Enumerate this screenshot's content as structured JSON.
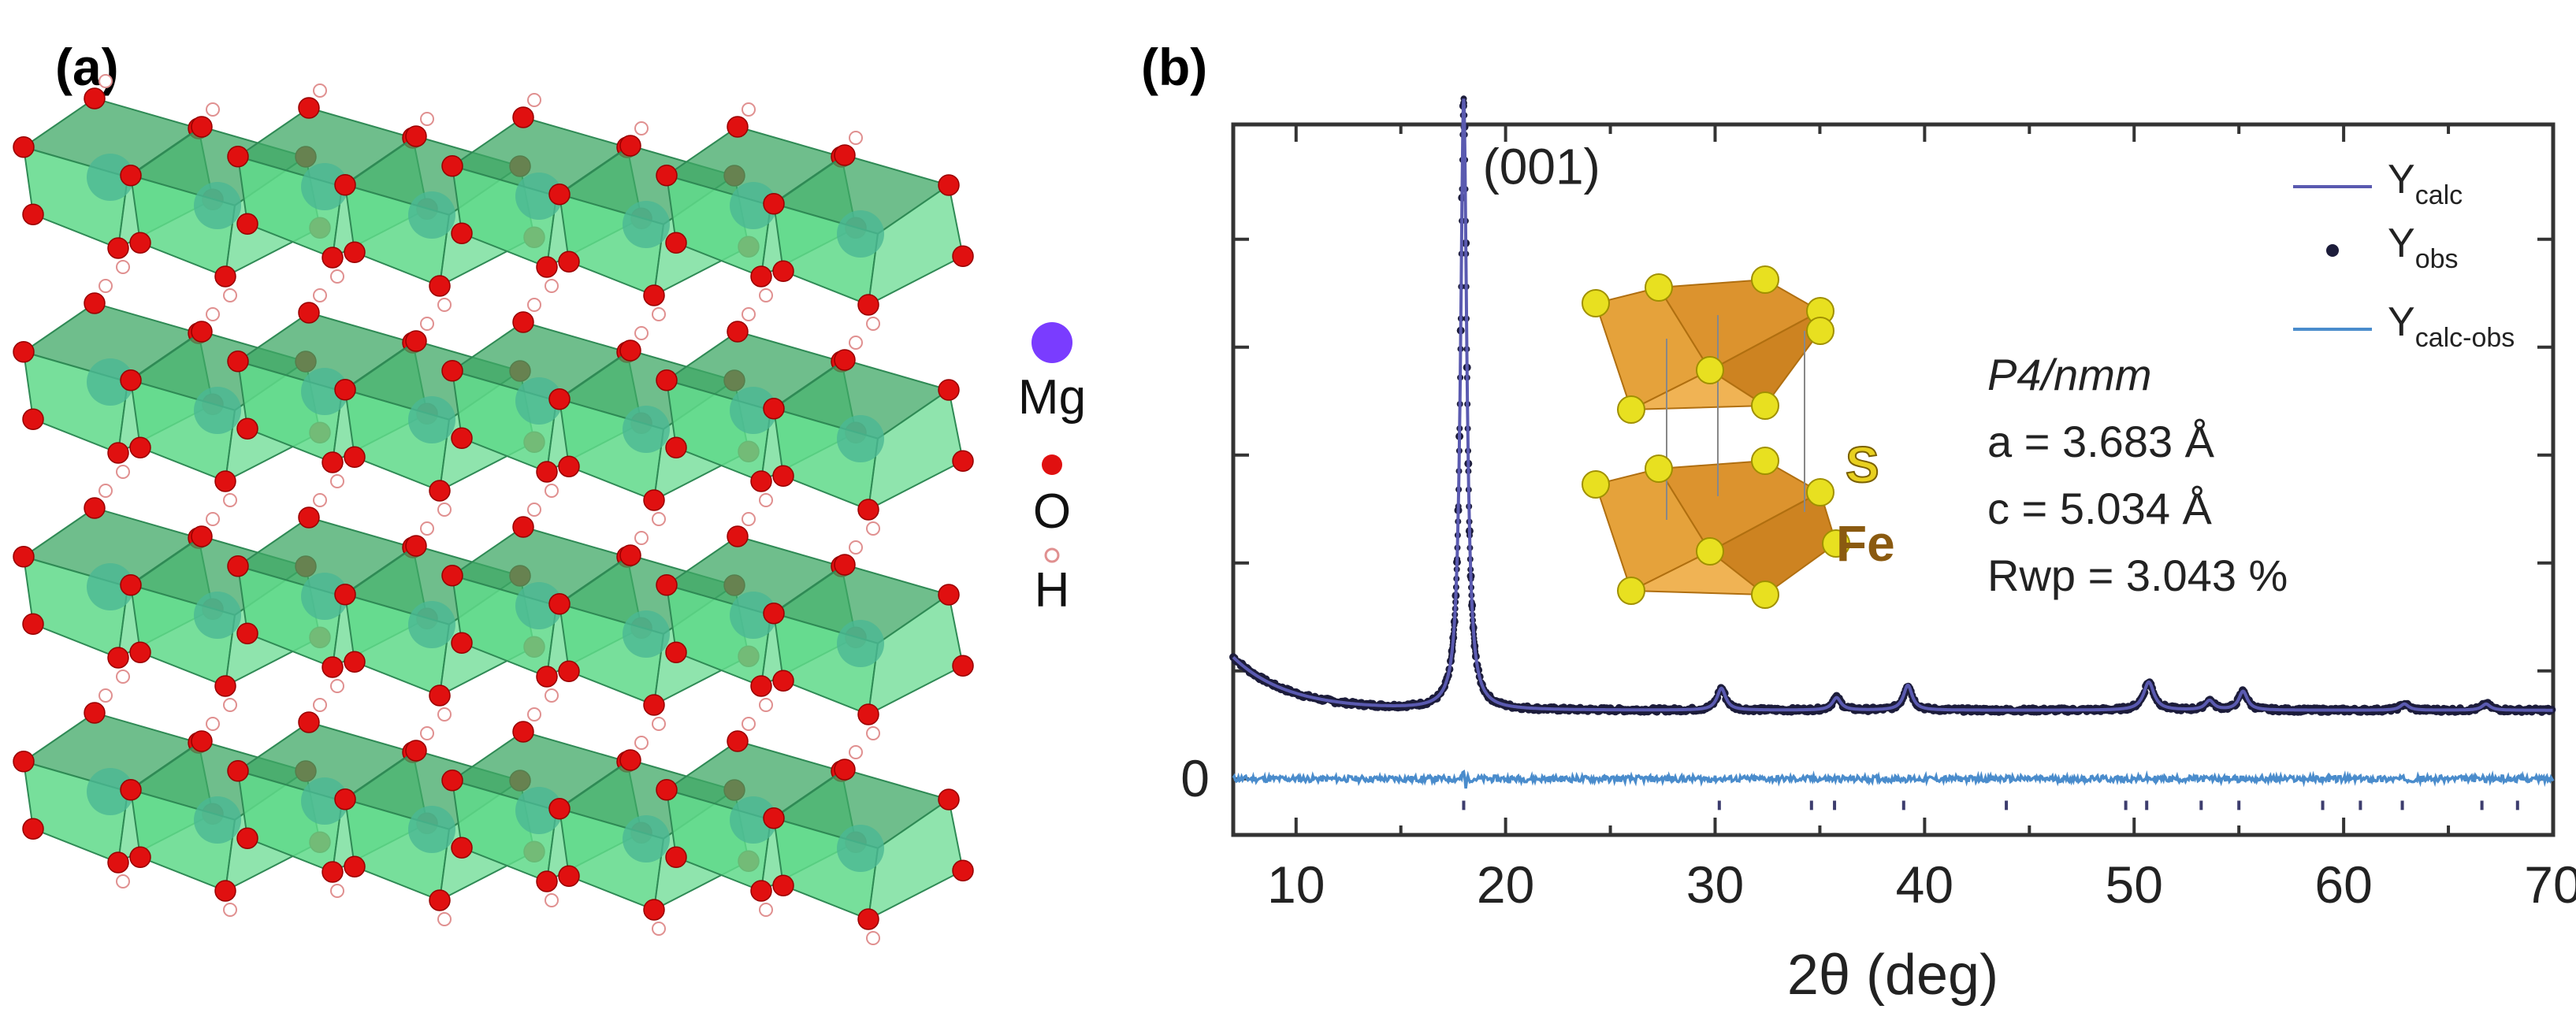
{
  "panels": {
    "a_label": "(a)",
    "b_label": "(b)"
  },
  "structure_legend": {
    "items": [
      {
        "label": "Mg",
        "color": "#7a3cff"
      },
      {
        "label": "O",
        "color": "#e01010"
      },
      {
        "label": "H",
        "color": "#f2b8b8"
      }
    ]
  },
  "colors": {
    "octahedron": "#5fd98a",
    "octahedron_dark": "#3fa866",
    "mg_core": "#4bb894",
    "oxygen": "#e01010",
    "hydrogen": "#ffffff",
    "calc_line": "#5a5ab0",
    "obs_points": "#1c1c3a",
    "diff_line": "#4a8ccc",
    "bragg_ticks": "#3d3d6e",
    "inset_tetra": "#e39a2a",
    "inset_s": "#e8e020",
    "inset_fe": "#8a5a10"
  },
  "chart_data": {
    "type": "line",
    "title": "",
    "xlabel": "2θ (deg)",
    "ylabel": "",
    "xlim": [
      7,
      70
    ],
    "ylim": [
      -0.09,
      1.05
    ],
    "xticks": [
      10,
      20,
      30,
      40,
      50,
      60,
      70
    ],
    "yticks": [
      0
    ],
    "zero_label": "0",
    "peak_annotation": {
      "label": "(001)",
      "x": 18.0,
      "y": 1.0
    },
    "series": [
      {
        "name": "Y",
        "sub": "calc",
        "style": "line",
        "color": "#5a5ab0",
        "peaks": [
          {
            "x": 18.0,
            "height": 0.98,
            "width": 0.18
          },
          {
            "x": 30.3,
            "height": 0.035,
            "width": 0.25
          },
          {
            "x": 35.8,
            "height": 0.02,
            "width": 0.25
          },
          {
            "x": 39.2,
            "height": 0.04,
            "width": 0.25
          },
          {
            "x": 50.7,
            "height": 0.045,
            "width": 0.3
          },
          {
            "x": 53.6,
            "height": 0.015,
            "width": 0.25
          },
          {
            "x": 55.2,
            "height": 0.03,
            "width": 0.25
          },
          {
            "x": 62.9,
            "height": 0.01,
            "width": 0.25
          },
          {
            "x": 66.8,
            "height": 0.01,
            "width": 0.25
          }
        ],
        "background": {
          "base": 0.11,
          "low_angle_amp": 0.085,
          "decay_deg": 2.6
        }
      },
      {
        "name": "Y",
        "sub": "obs",
        "style": "points",
        "color": "#1c1c3a"
      },
      {
        "name": "Y",
        "sub": "calc-obs",
        "style": "line",
        "color": "#4a8ccc",
        "offset": 0.0
      }
    ],
    "bragg_positions": [
      18.0,
      30.2,
      34.6,
      35.7,
      39.0,
      43.9,
      49.6,
      50.6,
      53.2,
      55.0,
      59.0,
      60.8,
      62.8,
      66.6,
      68.3
    ],
    "annotations": {
      "space_group": "P4/nmm",
      "a_param": "a = 3.683 Å",
      "c_param": "c = 5.034 Å",
      "rwp": "Rwp = 3.043 %"
    },
    "inset_labels": {
      "s": "S",
      "fe": "Fe"
    }
  }
}
